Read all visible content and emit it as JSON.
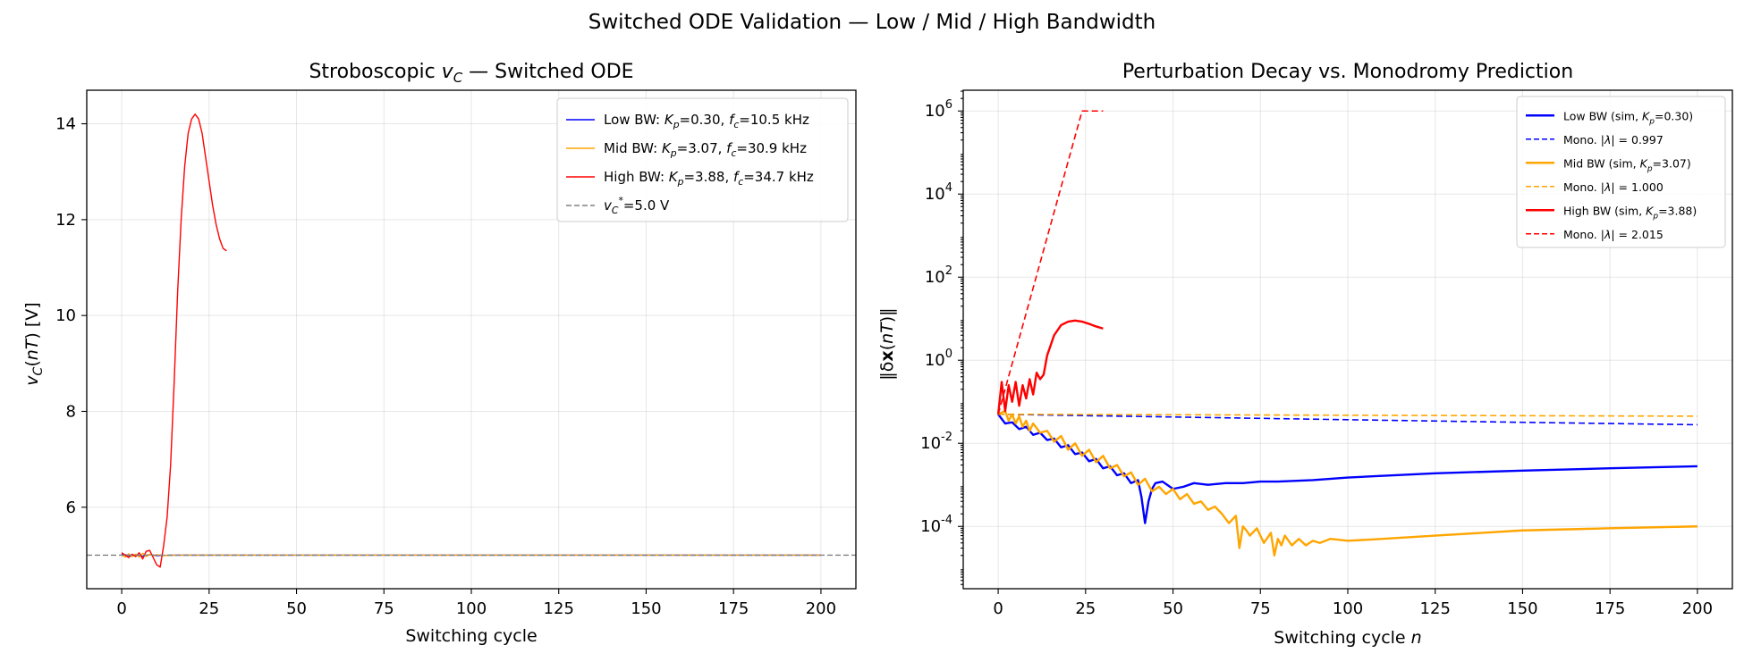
{
  "figure": {
    "suptitle": "Switched ODE Validation — Low / Mid / High Bandwidth"
  },
  "colors": {
    "low": "#0000ff",
    "mid": "#ffa500",
    "high": "#ff0000",
    "ref": "#808080"
  },
  "chart_data": [
    {
      "type": "line",
      "title": "Stroboscopic v_C — Switched ODE",
      "xlabel": "Switching cycle",
      "ylabel": "v_C(nT) [V]",
      "xlim": [
        -10,
        210
      ],
      "ylim": [
        4.3,
        14.7
      ],
      "xticks": [
        0,
        25,
        50,
        75,
        100,
        125,
        150,
        175,
        200
      ],
      "yticks": [
        6,
        8,
        10,
        12,
        14
      ],
      "grid": true,
      "legend_position": "top-right",
      "series": [
        {
          "key": "low",
          "name": "Low BW: K_p=0.30, f_c=10.5 kHz",
          "color": "#0000ff",
          "x": [
            0,
            2,
            4,
            6,
            8,
            10,
            15,
            25,
            50,
            100,
            150,
            200
          ],
          "y": [
            5.02,
            4.99,
            5.0,
            4.98,
            5.01,
            4.99,
            5.0,
            5.0,
            5.0,
            5.0,
            5.0,
            5.0
          ]
        },
        {
          "key": "mid",
          "name": "Mid BW: K_p=3.07, f_c=30.9 kHz",
          "color": "#ffa500",
          "x": [
            0,
            1,
            2,
            3,
            4,
            5,
            6,
            7,
            8,
            9,
            10,
            12,
            15,
            20,
            30,
            50,
            100,
            150,
            200
          ],
          "y": [
            5.0,
            4.96,
            5.03,
            4.97,
            5.02,
            4.96,
            5.04,
            4.97,
            5.02,
            4.98,
            5.01,
            4.99,
            5.0,
            5.0,
            5.0,
            5.0,
            5.0,
            5.0,
            5.0
          ]
        },
        {
          "key": "high",
          "name": "High BW: K_p=3.88, f_c=34.7 kHz",
          "color": "#ff0000",
          "x": [
            0,
            1,
            2,
            3,
            4,
            5,
            6,
            7,
            8,
            9,
            10,
            11,
            12,
            13,
            14,
            15,
            16,
            17,
            18,
            19,
            20,
            21,
            22,
            23,
            24,
            25,
            26,
            27,
            28,
            29,
            30
          ],
          "y": [
            5.05,
            5.0,
            4.95,
            5.02,
            4.97,
            5.05,
            4.92,
            5.08,
            5.1,
            4.95,
            4.8,
            4.75,
            5.2,
            5.8,
            6.9,
            8.6,
            10.5,
            12.0,
            13.1,
            13.8,
            14.1,
            14.2,
            14.1,
            13.8,
            13.3,
            12.8,
            12.3,
            11.9,
            11.6,
            11.4,
            11.35
          ]
        },
        {
          "key": "ref",
          "name": "v_C* =5.0 V",
          "color": "#808080",
          "dashed": true,
          "x": [
            -10,
            210
          ],
          "y": [
            5.0,
            5.0
          ]
        }
      ]
    },
    {
      "type": "line",
      "title": "Perturbation Decay vs. Monodromy Prediction",
      "xlabel": "Switching cycle n",
      "ylabel": "‖δx(nT)‖",
      "yscale": "log",
      "xlim": [
        -10,
        210
      ],
      "ylim": [
        3.16e-06,
        3162278
      ],
      "xticks": [
        0,
        25,
        50,
        75,
        100,
        125,
        150,
        175,
        200
      ],
      "yticks": [
        0.0001,
        0.01,
        1,
        100,
        10000,
        1000000
      ],
      "grid": true,
      "legend_position": "top-right",
      "series": [
        {
          "key": "low_sim",
          "name": "Low BW (sim, K_p=0.30)",
          "color": "#0000ff",
          "x": [
            0,
            2,
            4,
            6,
            8,
            10,
            12,
            14,
            16,
            18,
            20,
            22,
            24,
            26,
            28,
            30,
            32,
            34,
            36,
            38,
            40,
            41,
            42,
            43,
            44,
            45,
            47,
            50,
            53,
            56,
            60,
            65,
            70,
            75,
            80,
            90,
            100,
            125,
            150,
            175,
            200
          ],
          "y": [
            0.05,
            0.03,
            0.032,
            0.022,
            0.025,
            0.016,
            0.018,
            0.012,
            0.013,
            0.008,
            0.009,
            0.0055,
            0.006,
            0.0037,
            0.0042,
            0.0025,
            0.0028,
            0.0017,
            0.0019,
            0.0011,
            0.0013,
            0.0005,
            0.00012,
            0.0004,
            0.0008,
            0.0011,
            0.0012,
            0.0008,
            0.0009,
            0.0011,
            0.001,
            0.0011,
            0.0011,
            0.0012,
            0.0012,
            0.0013,
            0.0015,
            0.0019,
            0.0022,
            0.0025,
            0.0028
          ]
        },
        {
          "key": "low_mono",
          "name": "Mono. |λ| = 0.997",
          "color": "#0000ff",
          "dashed": true,
          "x": [
            0,
            50,
            100,
            150,
            200
          ],
          "y": [
            0.05,
            0.043,
            0.037,
            0.032,
            0.028
          ]
        },
        {
          "key": "mid_sim",
          "name": "Mid BW (sim, K_p=3.07)",
          "color": "#ffa500",
          "x": [
            0,
            2,
            3,
            4,
            5,
            6,
            7,
            8,
            9,
            10,
            12,
            14,
            16,
            18,
            20,
            22,
            24,
            26,
            28,
            30,
            32,
            34,
            36,
            38,
            40,
            42,
            44,
            46,
            48,
            50,
            52,
            54,
            56,
            58,
            60,
            62,
            64,
            66,
            68,
            69,
            70,
            71,
            72,
            74,
            76,
            78,
            79,
            80,
            81,
            82,
            84,
            86,
            88,
            90,
            92,
            95,
            100,
            110,
            125,
            150,
            175,
            200
          ],
          "y": [
            0.05,
            0.06,
            0.035,
            0.05,
            0.03,
            0.045,
            0.025,
            0.035,
            0.02,
            0.03,
            0.018,
            0.02,
            0.011,
            0.015,
            0.007,
            0.01,
            0.005,
            0.007,
            0.0035,
            0.005,
            0.0025,
            0.003,
            0.0016,
            0.002,
            0.001,
            0.0014,
            0.0007,
            0.0009,
            0.0006,
            0.0008,
            0.00045,
            0.0006,
            0.00035,
            0.0004,
            0.00025,
            0.0003,
            0.0002,
            0.00012,
            0.00018,
            3e-05,
            0.0001,
            8e-05,
            6e-05,
            9e-05,
            4e-05,
            7e-05,
            2e-05,
            5e-05,
            3.5e-05,
            6e-05,
            3.5e-05,
            5e-05,
            3.5e-05,
            4.5e-05,
            4e-05,
            5e-05,
            4.5e-05,
            5e-05,
            6e-05,
            8e-05,
            9e-05,
            0.0001
          ]
        },
        {
          "key": "mid_mono",
          "name": "Mono. |λ| = 1.000",
          "color": "#ffa500",
          "dashed": true,
          "x": [
            0,
            200
          ],
          "y": [
            0.05,
            0.045
          ]
        },
        {
          "key": "high_sim",
          "name": "High BW (sim, K_p=3.88)",
          "color": "#ff0000",
          "x": [
            0,
            1,
            2,
            3,
            4,
            5,
            6,
            7,
            8,
            9,
            10,
            11,
            12,
            13,
            14,
            16,
            18,
            20,
            22,
            24,
            26,
            28,
            30
          ],
          "y": [
            0.05,
            0.3,
            0.06,
            0.25,
            0.1,
            0.3,
            0.08,
            0.25,
            0.12,
            0.35,
            0.15,
            0.5,
            0.35,
            0.45,
            1.3,
            4,
            7,
            8.5,
            9,
            8.5,
            7.5,
            6.5,
            5.8
          ]
        },
        {
          "key": "high_mono",
          "name": "Mono. |λ| = 2.015",
          "color": "#ff0000",
          "dashed": true,
          "x": [
            0,
            24,
            30
          ],
          "y": [
            0.05,
            1000000,
            1000000
          ]
        }
      ]
    }
  ]
}
